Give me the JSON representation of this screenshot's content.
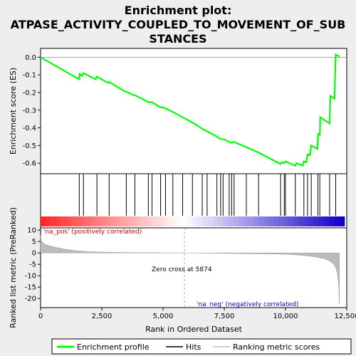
{
  "title_lines": [
    "Enrichment plot:",
    "ATPASE_ACTIVITY_COUPLED_TO_MOVEMENT_OF_SUB",
    "STANCES"
  ],
  "colors": {
    "enrichment_line": "#00ff00",
    "hits": "#000000",
    "metric_fill": "#bbbbbb",
    "pos_label": "#cc0000",
    "neg_label": "#0000cc"
  },
  "chart_data": [
    {
      "type": "line",
      "name": "enrichment-profile",
      "ylabel": "Enrichment score (ES)",
      "xlim": [
        0,
        12500
      ],
      "ylim": [
        -0.66,
        0.05
      ],
      "yticks": [
        0.0,
        -0.1,
        -0.2,
        -0.3,
        -0.4,
        -0.5,
        -0.6
      ],
      "ytick_labels": [
        "0.0",
        "-0.1",
        "-0.2",
        "-0.3",
        "-0.4",
        "-0.5",
        "-0.6"
      ],
      "x": [
        0,
        1580,
        1600,
        1700,
        1750,
        2250,
        2300,
        2750,
        2800,
        3450,
        3500,
        3800,
        3850,
        4350,
        4400,
        4500,
        4550,
        4900,
        5000,
        5100,
        5400,
        5800,
        6200,
        6600,
        6800,
        7200,
        7300,
        7400,
        7500,
        7700,
        7800,
        7900,
        8400,
        8900,
        9800,
        9850,
        9950,
        10000,
        10400,
        10450,
        10700,
        10750,
        10850,
        10900,
        11000,
        11050,
        11300,
        11330,
        11400,
        11420,
        11800,
        11830,
        12000,
        12050,
        12200
      ],
      "y": [
        0.0,
        -0.125,
        -0.095,
        -0.105,
        -0.09,
        -0.125,
        -0.11,
        -0.145,
        -0.14,
        -0.195,
        -0.195,
        -0.215,
        -0.215,
        -0.25,
        -0.255,
        -0.255,
        -0.255,
        -0.285,
        -0.285,
        -0.29,
        -0.31,
        -0.34,
        -0.37,
        -0.405,
        -0.42,
        -0.45,
        -0.46,
        -0.465,
        -0.465,
        -0.48,
        -0.485,
        -0.48,
        -0.51,
        -0.54,
        -0.605,
        -0.595,
        -0.6,
        -0.59,
        -0.615,
        -0.6,
        -0.615,
        -0.59,
        -0.595,
        -0.55,
        -0.555,
        -0.5,
        -0.52,
        -0.435,
        -0.44,
        -0.34,
        -0.375,
        -0.22,
        -0.235,
        0.015,
        0.005
      ]
    },
    {
      "type": "hits",
      "name": "hits",
      "xlim": [
        0,
        12500
      ],
      "x": [
        1580,
        1750,
        2300,
        2800,
        3500,
        3850,
        4400,
        4550,
        4900,
        5100,
        5400,
        5800,
        6200,
        6600,
        6800,
        7200,
        7350,
        7450,
        7700,
        7800,
        7900,
        8400,
        8900,
        9800,
        9950,
        10000,
        10400,
        10750,
        10900,
        11050,
        11320,
        11400,
        11800,
        12050
      ]
    },
    {
      "type": "area",
      "name": "ranked-list-metric",
      "xlabel": "Rank in Ordered Dataset",
      "ylabel": "Ranked list metric (PreRanked)",
      "xlim": [
        0,
        12500
      ],
      "ylim": [
        -24,
        11
      ],
      "yticks": [
        10,
        5,
        0,
        -5,
        -10,
        -15,
        -20
      ],
      "ytick_labels": [
        "10",
        "5",
        "0",
        "-5",
        "-10",
        "-15",
        "-20"
      ],
      "xticks": [
        0,
        2500,
        5000,
        7500,
        10000,
        12500
      ],
      "xtick_labels": [
        "0",
        "2,500",
        "5,000",
        "7,500",
        "10,000",
        "12,500"
      ],
      "x": [
        0,
        50,
        150,
        300,
        600,
        1000,
        1500,
        2000,
        3000,
        4000,
        5000,
        5874,
        7000,
        8000,
        9000,
        10000,
        10500,
        11000,
        11300,
        11600,
        11800,
        11950,
        12050,
        12120,
        12170,
        12200
      ],
      "y": [
        7.5,
        5,
        4,
        3.3,
        2.5,
        1.6,
        0.9,
        0.5,
        0.25,
        0.12,
        0.05,
        0,
        -0.1,
        -0.25,
        -0.4,
        -0.6,
        -0.9,
        -1.4,
        -1.9,
        -2.6,
        -3.5,
        -4.8,
        -6.5,
        -9,
        -14,
        -22.5
      ],
      "annotations": {
        "pos": "'na_pos' (positively correlated)",
        "neg": "'na_neg' (negatively correlated)",
        "zero_cross": "Zero cross at 5874"
      },
      "zero_cross": 5874
    }
  ],
  "legend": {
    "items": [
      {
        "label": "Enrichment profile",
        "kind": "line",
        "color": "#00ff00"
      },
      {
        "label": "Hits",
        "kind": "line",
        "color": "#000000"
      },
      {
        "label": "Ranking metric scores",
        "kind": "line",
        "color": "#bbbbbb"
      }
    ]
  }
}
